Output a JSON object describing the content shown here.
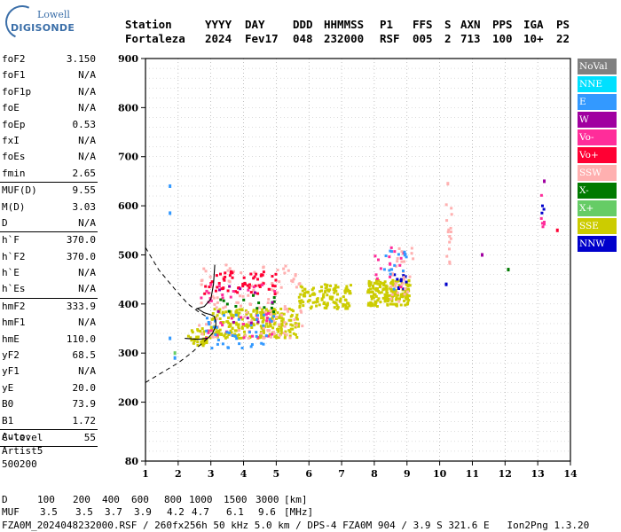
{
  "logo": {
    "top": "Lowell",
    "bottom": "DIGISONDE"
  },
  "header": {
    "row1": [
      "Station",
      "YYYY",
      "DAY",
      "DDD",
      "HHMMSS",
      "P1",
      "FFS",
      "S",
      "AXN",
      "PPS",
      "IGA",
      "PS"
    ],
    "row2": [
      "Fortaleza",
      "2024",
      "Fev17",
      "048",
      "232000",
      "RSF",
      "005",
      "2",
      "713",
      "100",
      "10+",
      "22"
    ]
  },
  "params": [
    {
      "label": "foF2",
      "value": "3.150"
    },
    {
      "label": "foF1",
      "value": "N/A"
    },
    {
      "label": "foF1p",
      "value": "N/A"
    },
    {
      "label": "foE",
      "value": "N/A"
    },
    {
      "label": "foEp",
      "value": "0.53"
    },
    {
      "label": "fxI",
      "value": "N/A"
    },
    {
      "label": "foEs",
      "value": "N/A"
    },
    {
      "label": "fmin",
      "value": "2.65",
      "sep": true
    },
    {
      "label": "MUF(D)",
      "value": "9.55"
    },
    {
      "label": "M(D)",
      "value": "3.03"
    },
    {
      "label": "D",
      "value": "N/A",
      "sep": true
    },
    {
      "label": "h`F",
      "value": "370.0"
    },
    {
      "label": "h`F2",
      "value": "370.0"
    },
    {
      "label": "h`E",
      "value": "N/A"
    },
    {
      "label": "h`Es",
      "value": "N/A",
      "sep": true
    },
    {
      "label": "hmF2",
      "value": "333.9"
    },
    {
      "label": "hmF1",
      "value": "N/A"
    },
    {
      "label": "hmE",
      "value": "110.0"
    },
    {
      "label": "yF2",
      "value": "68.5"
    },
    {
      "label": "yF1",
      "value": "N/A"
    },
    {
      "label": "yE",
      "value": "20.0"
    },
    {
      "label": "B0",
      "value": "73.9"
    },
    {
      "label": "B1",
      "value": "1.72",
      "sep": true
    },
    {
      "label": "C-level",
      "value": "55",
      "sep": true
    }
  ],
  "auto": {
    "line1": "Auto:",
    "line2": "Artist5",
    "line3": "500200"
  },
  "legend": [
    {
      "label": "NoVal",
      "color": "#808080"
    },
    {
      "label": "NNE",
      "color": "#00e0ff"
    },
    {
      "label": "E",
      "color": "#3399ff"
    },
    {
      "label": "W",
      "color": "#a000a0"
    },
    {
      "label": "Vo-",
      "color": "#ff2d9a"
    },
    {
      "label": "Vo+",
      "color": "#ff0033"
    },
    {
      "label": "SSW",
      "color": "#ffb0b0"
    },
    {
      "label": "X-",
      "color": "#007a00"
    },
    {
      "label": "X+",
      "color": "#66cc66"
    },
    {
      "label": "SSE",
      "color": "#cccc00"
    },
    {
      "label": "NNW",
      "color": "#0000cc"
    }
  ],
  "footer": {
    "d_label": "D",
    "d_values": [
      "100",
      "200",
      "400",
      "600",
      "800",
      "1000",
      "1500",
      "3000"
    ],
    "d_unit": "[km]",
    "muf_label": "MUF",
    "muf_values": [
      "3.5",
      "3.5",
      "3.7",
      "3.9",
      "4.2",
      "4.7",
      "6.1",
      "9.6"
    ],
    "muf_unit": "[MHz]",
    "bottom_line": "FZA0M_2024048232000.RSF / 260fx256h 50 kHz 5.0 km / DPS-4 FZA0M 904 / 3.9 S 321.6 E   Ion2Png 1.3.20"
  },
  "chart_data": {
    "type": "scatter",
    "xlim": [
      1,
      14
    ],
    "ylim": [
      80,
      900
    ],
    "x_ticks": [
      1,
      2,
      3,
      4,
      5,
      6,
      7,
      8,
      9,
      10,
      11,
      12,
      13,
      14
    ],
    "y_ticks": [
      80,
      200,
      300,
      400,
      500,
      600,
      700,
      800,
      900
    ],
    "grid": true,
    "legend_position": "right",
    "clusters": [
      {
        "x": [
          2.3,
          3.0
        ],
        "y": [
          315,
          350
        ],
        "color": "#cccc00",
        "n": 40
      },
      {
        "x": [
          3.0,
          5.7
        ],
        "y": [
          330,
          390
        ],
        "color": "#cccc00",
        "n": 240
      },
      {
        "x": [
          5.7,
          7.3
        ],
        "y": [
          390,
          440
        ],
        "color": "#cccc00",
        "n": 120
      },
      {
        "x": [
          7.8,
          9.1
        ],
        "y": [
          395,
          450
        ],
        "color": "#cccc00",
        "n": 180
      },
      {
        "x": [
          2.6,
          5.8
        ],
        "y": [
          330,
          480
        ],
        "color": "#ffb0b0",
        "n": 120
      },
      {
        "x": [
          2.8,
          5.0
        ],
        "y": [
          420,
          470
        ],
        "color": "#ff0033",
        "n": 60
      },
      {
        "x": [
          2.6,
          5.0
        ],
        "y": [
          330,
          440
        ],
        "color": "#ff2d9a",
        "n": 40
      },
      {
        "x": [
          2.8,
          5.0
        ],
        "y": [
          310,
          380
        ],
        "color": "#3399ff",
        "n": 40
      },
      {
        "x": [
          3.0,
          5.0
        ],
        "y": [
          380,
          420
        ],
        "color": "#007a00",
        "n": 15
      },
      {
        "x": [
          3.0,
          5.0
        ],
        "y": [
          360,
          440
        ],
        "color": "#a000a0",
        "n": 10
      },
      {
        "x": [
          8.6,
          9.0
        ],
        "y": [
          430,
          460
        ],
        "color": "#0000cc",
        "n": 10
      },
      {
        "x": [
          8.5,
          9.2
        ],
        "y": [
          400,
          520
        ],
        "color": "#ffb0b0",
        "n": 30
      },
      {
        "x": [
          7.9,
          9.0
        ],
        "y": [
          430,
          520
        ],
        "color": "#ff2d9a",
        "n": 15
      },
      {
        "x": [
          8.3,
          9.0
        ],
        "y": [
          420,
          520
        ],
        "color": "#3399ff",
        "n": 15
      },
      {
        "x": [
          10.2,
          10.4
        ],
        "y": [
          480,
          620
        ],
        "color": "#ffb0b0",
        "n": 15
      },
      {
        "x": [
          13.1,
          13.2
        ],
        "y": [
          540,
          640
        ],
        "color": "#ff2d9a",
        "n": 6
      },
      {
        "x": [
          13.1,
          13.2
        ],
        "y": [
          580,
          600
        ],
        "color": "#0000cc",
        "n": 3
      }
    ],
    "points": [
      {
        "x": 1.75,
        "y": 640,
        "color": "#3399ff"
      },
      {
        "x": 1.75,
        "y": 585,
        "color": "#3399ff"
      },
      {
        "x": 1.75,
        "y": 330,
        "color": "#3399ff"
      },
      {
        "x": 1.9,
        "y": 300,
        "color": "#66cc66"
      },
      {
        "x": 1.9,
        "y": 290,
        "color": "#3399ff"
      },
      {
        "x": 10.25,
        "y": 645,
        "color": "#ffb0b0"
      },
      {
        "x": 10.2,
        "y": 440,
        "color": "#0000cc"
      },
      {
        "x": 11.3,
        "y": 500,
        "color": "#a000a0"
      },
      {
        "x": 12.1,
        "y": 470,
        "color": "#007a00"
      },
      {
        "x": 13.2,
        "y": 650,
        "color": "#a000a0"
      },
      {
        "x": 13.6,
        "y": 550,
        "color": "#ff0033"
      }
    ],
    "profile_curve": {
      "x": [
        2.2,
        2.6,
        2.9,
        3.05,
        3.15,
        3.15,
        3.1,
        3.0,
        2.8,
        2.6,
        2.55,
        2.8,
        3.0,
        3.08,
        3.12
      ],
      "y": [
        330,
        328,
        330,
        340,
        355,
        365,
        375,
        378,
        382,
        390,
        390,
        395,
        410,
        440,
        480
      ]
    },
    "dashed_curves": [
      {
        "x": [
          1.0,
          1.4,
          1.9,
          2.3,
          2.6,
          2.85
        ],
        "y": [
          515,
          470,
          430,
          400,
          385,
          375
        ]
      },
      {
        "x": [
          1.0,
          1.5,
          2.0,
          2.4,
          2.7,
          2.9
        ],
        "y": [
          240,
          260,
          280,
          300,
          318,
          330
        ]
      }
    ]
  }
}
